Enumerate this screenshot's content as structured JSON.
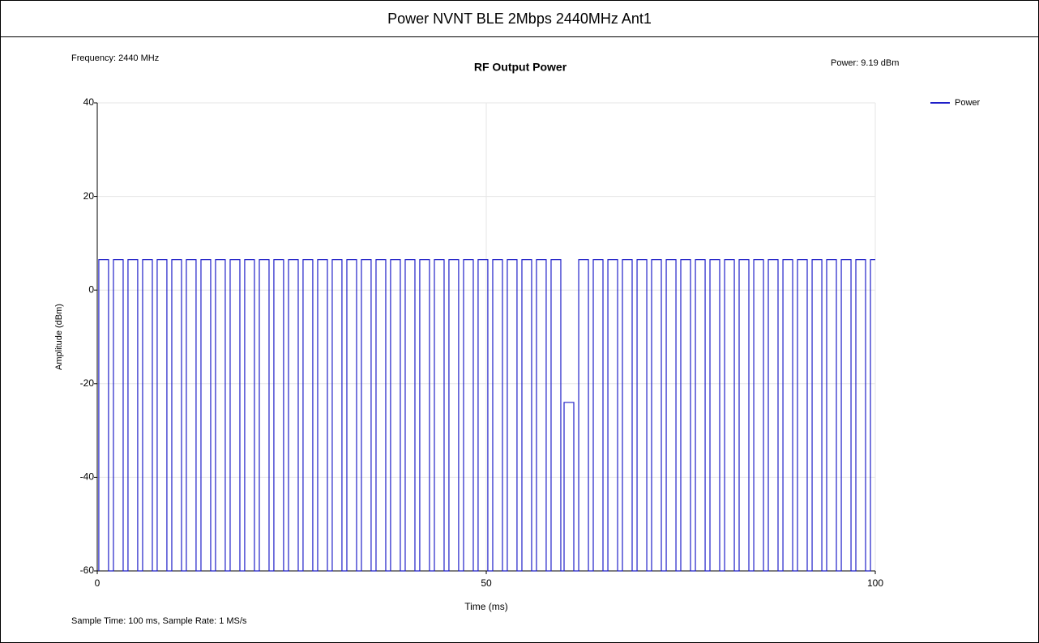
{
  "chart_data": {
    "type": "line",
    "window_title": "Power NVNT BLE 2Mbps 2440MHz Ant1",
    "title": "RF Output Power",
    "frequency_note": "Frequency: 2440 MHz",
    "power_note": "Power: 9.19 dBm",
    "footer": "Sample Time: 100 ms,  Sample Rate: 1 MS/s",
    "xlabel": "Time (ms)",
    "ylabel": "Amplitude (dBm)",
    "xlim": [
      0,
      100
    ],
    "ylim": [
      -60,
      40
    ],
    "xticks": [
      0,
      50,
      100
    ],
    "yticks": [
      -60,
      -40,
      -20,
      0,
      20,
      40
    ],
    "grid": true,
    "legend": "upper right",
    "series": [
      {
        "name": "Power",
        "color": "#1f1fc8",
        "x": [
          0.2,
          0.2,
          1.45,
          1.45,
          2.08,
          2.08,
          3.33,
          3.33,
          3.95,
          3.95,
          5.2,
          5.2,
          5.83,
          5.83,
          7.08,
          7.08,
          7.7,
          7.7,
          8.95,
          8.95,
          9.58,
          9.58,
          10.83,
          10.83,
          11.45,
          11.45,
          12.7,
          12.7,
          13.33,
          13.33,
          14.58,
          14.58,
          15.2,
          15.2,
          16.45,
          16.45,
          17.08,
          17.08,
          18.33,
          18.33,
          18.95,
          18.95,
          20.2,
          20.2,
          20.83,
          20.83,
          22.08,
          22.08,
          22.7,
          22.7,
          23.95,
          23.95,
          24.58,
          24.58,
          25.83,
          25.83,
          26.45,
          26.45,
          27.7,
          27.7,
          28.33,
          28.33,
          29.58,
          29.58,
          30.2,
          30.2,
          31.45,
          31.45,
          32.08,
          32.08,
          33.33,
          33.33,
          33.95,
          33.95,
          35.2,
          35.2,
          35.83,
          35.83,
          37.08,
          37.08,
          37.7,
          37.7,
          38.95,
          38.95,
          39.58,
          39.58,
          40.83,
          40.83,
          41.45,
          41.45,
          42.7,
          42.7,
          43.33,
          43.33,
          44.58,
          44.58,
          45.2,
          45.2,
          46.45,
          46.45,
          47.08,
          47.08,
          48.33,
          48.33,
          48.95,
          48.95,
          50.2,
          50.2,
          50.83,
          50.83,
          52.08,
          52.08,
          52.7,
          52.7,
          53.95,
          53.95,
          54.58,
          54.58,
          55.83,
          55.83,
          56.45,
          56.45,
          57.7,
          57.7,
          58.33,
          58.33,
          59.58,
          59.58,
          60.0,
          60.0,
          61.25,
          61.25,
          61.88,
          61.88,
          63.13,
          63.13,
          63.75,
          63.75,
          65.0,
          65.0,
          65.63,
          65.63,
          66.88,
          66.88,
          67.5,
          67.5,
          68.75,
          68.75,
          69.38,
          69.38,
          70.63,
          70.63,
          71.25,
          71.25,
          72.5,
          72.5,
          73.13,
          73.13,
          74.38,
          74.38,
          75.0,
          75.0,
          76.25,
          76.25,
          76.88,
          76.88,
          78.13,
          78.13,
          78.75,
          78.75,
          80.0,
          80.0,
          80.63,
          80.63,
          81.88,
          81.88,
          82.5,
          82.5,
          83.75,
          83.75,
          84.38,
          84.38,
          85.63,
          85.63,
          86.25,
          86.25,
          87.5,
          87.5,
          88.13,
          88.13,
          89.38,
          89.38,
          90.0,
          90.0,
          91.25,
          91.25,
          91.88,
          91.88,
          93.13,
          93.13,
          93.75,
          93.75,
          95.0,
          95.0,
          95.63,
          95.63,
          96.88,
          96.88,
          97.5,
          97.5,
          98.75,
          98.75,
          99.38,
          99.38,
          100.0
        ],
        "values": [
          -60,
          6.5,
          6.5,
          -60,
          -60,
          6.5,
          6.5,
          -60,
          -60,
          6.5,
          6.5,
          -60,
          -60,
          6.5,
          6.5,
          -60,
          -60,
          6.5,
          6.5,
          -60,
          -60,
          6.5,
          6.5,
          -60,
          -60,
          6.5,
          6.5,
          -60,
          -60,
          6.5,
          6.5,
          -60,
          -60,
          6.5,
          6.5,
          -60,
          -60,
          6.5,
          6.5,
          -60,
          -60,
          6.5,
          6.5,
          -60,
          -60,
          6.5,
          6.5,
          -60,
          -60,
          6.5,
          6.5,
          -60,
          -60,
          6.5,
          6.5,
          -60,
          -60,
          6.5,
          6.5,
          -60,
          -60,
          6.5,
          6.5,
          -60,
          -60,
          6.5,
          6.5,
          -60,
          -60,
          6.5,
          6.5,
          -60,
          -60,
          6.5,
          6.5,
          -60,
          -60,
          6.5,
          6.5,
          -60,
          -60,
          6.5,
          6.5,
          -60,
          -60,
          6.5,
          6.5,
          -60,
          -60,
          6.5,
          6.5,
          -60,
          -60,
          6.5,
          6.5,
          -60,
          -60,
          6.5,
          6.5,
          -60,
          -60,
          6.5,
          6.5,
          -60,
          -60,
          6.5,
          6.5,
          -60,
          -60,
          6.5,
          6.5,
          -60,
          -60,
          6.5,
          6.5,
          -60,
          -60,
          6.5,
          6.5,
          -60,
          -60,
          6.5,
          6.5,
          -60,
          -60,
          6.5,
          6.5,
          -60,
          -60,
          -24,
          -24,
          -60,
          -60,
          6.5,
          6.5,
          -60,
          -60,
          6.5,
          6.5,
          -60,
          -60,
          6.5,
          6.5,
          -60,
          -60,
          6.5,
          6.5,
          -60,
          -60,
          6.5,
          6.5,
          -60,
          -60,
          6.5,
          6.5,
          -60,
          -60,
          6.5,
          6.5,
          -60,
          -60,
          6.5,
          6.5,
          -60,
          -60,
          6.5,
          6.5,
          -60,
          -60,
          6.5,
          6.5,
          -60,
          -60,
          6.5,
          6.5,
          -60,
          -60,
          6.5,
          6.5,
          -60,
          -60,
          6.5,
          6.5,
          -60,
          -60,
          6.5,
          6.5,
          -60,
          -60,
          6.5,
          6.5,
          -60,
          -60,
          6.5,
          6.5,
          -60,
          -60,
          6.5,
          6.5,
          -60,
          -60,
          6.5,
          6.5,
          -60,
          -60,
          6.5,
          6.5,
          -60,
          -60,
          6.5,
          6.5,
          -60,
          -60,
          6.5,
          6.5
        ]
      }
    ]
  }
}
